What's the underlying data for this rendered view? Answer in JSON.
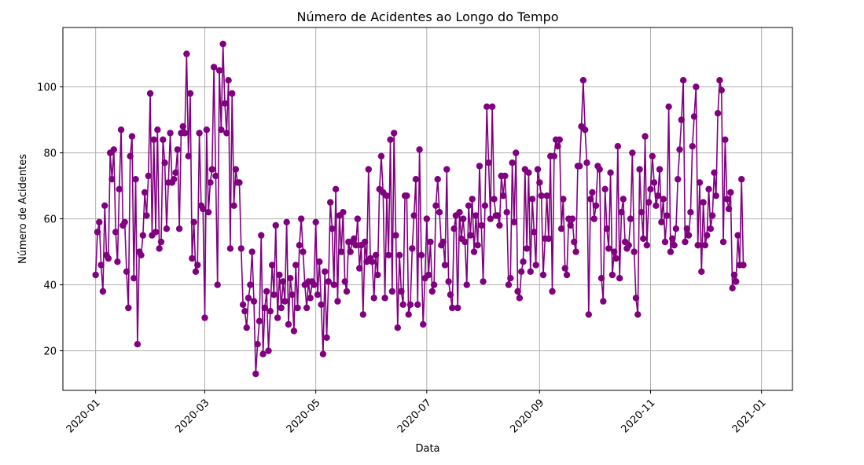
{
  "chart_data": {
    "type": "line",
    "title": "Número de Acidentes ao Longo do Tempo",
    "xlabel": "Data",
    "ylabel": "Número de Acidentes",
    "x_start": "2020-01-01",
    "x_end": "2020-12-31",
    "xlim": [
      "2019-12-14",
      "2021-01-18"
    ],
    "ylim": [
      8,
      118
    ],
    "yticks": [
      20,
      40,
      60,
      80,
      100
    ],
    "xticks": [
      "2020-01",
      "2020-03",
      "2020-05",
      "2020-07",
      "2020-09",
      "2020-11",
      "2021-01"
    ],
    "grid": true,
    "marker": "circle",
    "color": "#800080",
    "series": [
      {
        "values": [
          43,
          56,
          59,
          46,
          38,
          64,
          49,
          48,
          80,
          72,
          81,
          56,
          47,
          69,
          87,
          58,
          59,
          44,
          33,
          79,
          85,
          42,
          72,
          22,
          50,
          49,
          55,
          68,
          61,
          73,
          98,
          55,
          84,
          56,
          87,
          51,
          53,
          84,
          77,
          57,
          71,
          86,
          71,
          72,
          74,
          81,
          57,
          86,
          88,
          86,
          110,
          79,
          98,
          48,
          59,
          44,
          46,
          86,
          64,
          63,
          30,
          87,
          62,
          71,
          75,
          106,
          73,
          40,
          105,
          87,
          113,
          95,
          86,
          102,
          51,
          98,
          64,
          75,
          71,
          71,
          51,
          34,
          32,
          27,
          36,
          40,
          50,
          35,
          13,
          22,
          29,
          55,
          19,
          33,
          38,
          20,
          32,
          46,
          37,
          58,
          30,
          43,
          33,
          41,
          35,
          59,
          28,
          42,
          37,
          26,
          46,
          33,
          52,
          60,
          50,
          40,
          33,
          41,
          36,
          41,
          40,
          59,
          37,
          47,
          34,
          19,
          44,
          24,
          41,
          65,
          57,
          40,
          69,
          35,
          61,
          50,
          62,
          41,
          38,
          53,
          50,
          53,
          54,
          52,
          60,
          45,
          52,
          31,
          53,
          47,
          75,
          48,
          47,
          36,
          49,
          43,
          69,
          79,
          68,
          36,
          67,
          49,
          84,
          38,
          86,
          55,
          27,
          49,
          38,
          34,
          67,
          67,
          31,
          34,
          51,
          61,
          72,
          34,
          81,
          49,
          28,
          42,
          60,
          43,
          53,
          38,
          40,
          64,
          72,
          62,
          52,
          53,
          46,
          75,
          41,
          37,
          33,
          57,
          61,
          33,
          62,
          54,
          60,
          53,
          40,
          64,
          55,
          66,
          50,
          61,
          52,
          76,
          58,
          41,
          64,
          94,
          77,
          60,
          94,
          66,
          61,
          61,
          58,
          73,
          67,
          73,
          62,
          40,
          42,
          77,
          59,
          80,
          38,
          36,
          44,
          47,
          75,
          51,
          74,
          44,
          66,
          56,
          46,
          75,
          71,
          67,
          43,
          54,
          67,
          54,
          79,
          38,
          79,
          84,
          82,
          84,
          57,
          66,
          45,
          43,
          60,
          58,
          60,
          53,
          50,
          76,
          76,
          88,
          102,
          87,
          77,
          31,
          66,
          68,
          60,
          64,
          76,
          75,
          42,
          35,
          69,
          57,
          51,
          74,
          43,
          50,
          48,
          82,
          42,
          62,
          66,
          53,
          51,
          52,
          60,
          80,
          50,
          36,
          31,
          75,
          62,
          54,
          85,
          52,
          65,
          69,
          79,
          71,
          64,
          67,
          75,
          59,
          66,
          53,
          61,
          94,
          50,
          54,
          52,
          57,
          72,
          81,
          90,
          102,
          53,
          57,
          55,
          62,
          82,
          91,
          100,
          52,
          71,
          44,
          65,
          52,
          55,
          69,
          57,
          61,
          74,
          67,
          92,
          102,
          99,
          53,
          84,
          66,
          63,
          68,
          39,
          43,
          41,
          55,
          46,
          72,
          46
        ]
      }
    ]
  }
}
